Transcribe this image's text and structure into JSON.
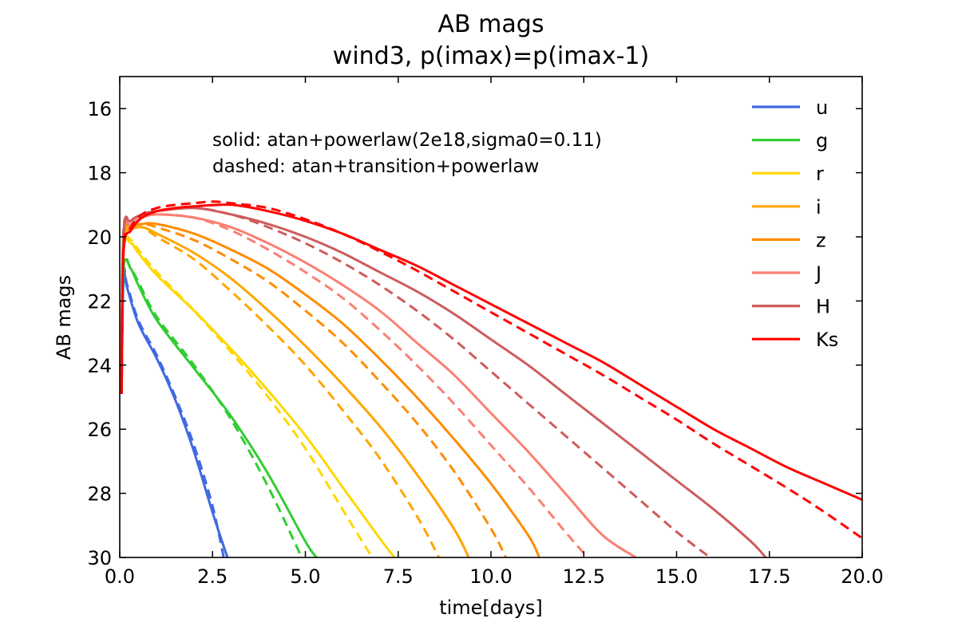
{
  "chart_data": {
    "type": "line",
    "title": "AB mags",
    "subtitle": "wind3, p(imax)=p(imax-1)",
    "xlabel": "time[days]",
    "ylabel": "AB mags",
    "xlim": [
      0,
      20
    ],
    "ylim": [
      30,
      15
    ],
    "y_inverted": true,
    "grid": false,
    "legend_position": "top-right",
    "x_ticks": [
      0,
      2.5,
      5,
      7.5,
      10,
      12.5,
      15,
      17.5,
      20
    ],
    "x_tick_labels": [
      "0.0",
      "2.5",
      "5.0",
      "7.5",
      "10.0",
      "12.5",
      "15.0",
      "17.5",
      "20.0"
    ],
    "y_ticks": [
      16,
      18,
      20,
      22,
      24,
      26,
      28,
      30
    ],
    "y_tick_labels": [
      "16",
      "18",
      "20",
      "22",
      "24",
      "26",
      "28",
      "30"
    ],
    "annotations": [
      "solid:  atan+powerlaw(2e18,sigma0=0.11)",
      "dashed:  atan+transition+powerlaw"
    ],
    "series": [
      {
        "name": "u",
        "color": "#4169e1",
        "solid": [
          [
            0.05,
            24.9
          ],
          [
            0.1,
            21.3
          ],
          [
            0.2,
            21.6
          ],
          [
            0.5,
            22.7
          ],
          [
            1,
            23.8
          ],
          [
            1.5,
            25.1
          ],
          [
            2,
            26.7
          ],
          [
            2.5,
            28.6
          ],
          [
            2.9,
            30.0
          ]
        ],
        "dashed": [
          [
            0.05,
            24.9
          ],
          [
            0.1,
            21.2
          ],
          [
            0.2,
            21.5
          ],
          [
            0.5,
            22.6
          ],
          [
            1,
            23.7
          ],
          [
            1.5,
            25.0
          ],
          [
            2,
            26.5
          ],
          [
            2.5,
            28.4
          ],
          [
            2.8,
            30.0
          ]
        ]
      },
      {
        "name": "g",
        "color": "#32cd32",
        "solid": [
          [
            0.05,
            24.8
          ],
          [
            0.1,
            21.0
          ],
          [
            0.3,
            21.0
          ],
          [
            0.5,
            21.5
          ],
          [
            1,
            22.6
          ],
          [
            2,
            24.1
          ],
          [
            3,
            25.6
          ],
          [
            4,
            27.4
          ],
          [
            5,
            29.5
          ],
          [
            5.3,
            30.0
          ]
        ],
        "dashed": [
          [
            0.05,
            24.8
          ],
          [
            0.1,
            20.9
          ],
          [
            0.3,
            21.0
          ],
          [
            0.5,
            21.4
          ],
          [
            1,
            22.5
          ],
          [
            2,
            24.0
          ],
          [
            3,
            25.7
          ],
          [
            4,
            27.8
          ],
          [
            4.9,
            30.0
          ]
        ]
      },
      {
        "name": "r",
        "color": "#ffd700",
        "solid": [
          [
            0.05,
            24.7
          ],
          [
            0.1,
            20.5
          ],
          [
            0.3,
            20.2
          ],
          [
            0.5,
            20.5
          ],
          [
            1,
            21.2
          ],
          [
            2,
            22.3
          ],
          [
            3,
            23.5
          ],
          [
            4,
            24.8
          ],
          [
            5,
            26.2
          ],
          [
            6,
            27.8
          ],
          [
            7,
            29.4
          ],
          [
            7.4,
            30.0
          ]
        ],
        "dashed": [
          [
            0.05,
            24.7
          ],
          [
            0.1,
            20.4
          ],
          [
            0.3,
            20.1
          ],
          [
            0.5,
            20.4
          ],
          [
            1,
            21.1
          ],
          [
            2,
            22.3
          ],
          [
            3,
            23.6
          ],
          [
            4,
            25.0
          ],
          [
            5,
            26.6
          ],
          [
            6,
            28.5
          ],
          [
            6.8,
            30.0
          ]
        ]
      },
      {
        "name": "i",
        "color": "#ffa500",
        "solid": [
          [
            0.05,
            24.6
          ],
          [
            0.1,
            20.3
          ],
          [
            0.3,
            19.8
          ],
          [
            0.6,
            19.7
          ],
          [
            1,
            19.9
          ],
          [
            2,
            20.5
          ],
          [
            3,
            21.3
          ],
          [
            4,
            22.3
          ],
          [
            5,
            23.4
          ],
          [
            6,
            24.6
          ],
          [
            7,
            25.9
          ],
          [
            8,
            27.4
          ],
          [
            9,
            29.1
          ],
          [
            9.4,
            30.0
          ]
        ],
        "dashed": [
          [
            0.05,
            24.6
          ],
          [
            0.1,
            20.2
          ],
          [
            0.3,
            19.8
          ],
          [
            0.6,
            19.7
          ],
          [
            1,
            20.0
          ],
          [
            2,
            20.7
          ],
          [
            3,
            21.7
          ],
          [
            4,
            22.8
          ],
          [
            5,
            24.0
          ],
          [
            6,
            25.4
          ],
          [
            7,
            26.9
          ],
          [
            8,
            28.7
          ],
          [
            8.6,
            30.0
          ]
        ]
      },
      {
        "name": "z",
        "color": "#ff8c00",
        "solid": [
          [
            0.05,
            24.5
          ],
          [
            0.1,
            20.1
          ],
          [
            0.3,
            19.7
          ],
          [
            0.6,
            19.6
          ],
          [
            1,
            19.6
          ],
          [
            2,
            19.9
          ],
          [
            3,
            20.4
          ],
          [
            4,
            21.0
          ],
          [
            5,
            21.8
          ],
          [
            6,
            22.7
          ],
          [
            7,
            23.8
          ],
          [
            8,
            25.0
          ],
          [
            9,
            26.3
          ],
          [
            10,
            27.7
          ],
          [
            11,
            29.3
          ],
          [
            11.3,
            30.0
          ]
        ],
        "dashed": [
          [
            0.05,
            24.5
          ],
          [
            0.1,
            20.0
          ],
          [
            0.3,
            19.7
          ],
          [
            0.6,
            19.6
          ],
          [
            1,
            19.7
          ],
          [
            2,
            20.1
          ],
          [
            3,
            20.7
          ],
          [
            4,
            21.4
          ],
          [
            5,
            22.3
          ],
          [
            6,
            23.3
          ],
          [
            7,
            24.5
          ],
          [
            8,
            25.8
          ],
          [
            9,
            27.3
          ],
          [
            10,
            29.1
          ],
          [
            10.4,
            30.0
          ]
        ]
      },
      {
        "name": "J",
        "color": "#fa8072",
        "solid": [
          [
            0.05,
            24.4
          ],
          [
            0.1,
            20.0
          ],
          [
            0.3,
            19.6
          ],
          [
            0.6,
            19.4
          ],
          [
            1,
            19.3
          ],
          [
            2,
            19.4
          ],
          [
            3,
            19.7
          ],
          [
            4,
            20.2
          ],
          [
            5,
            20.8
          ],
          [
            6,
            21.5
          ],
          [
            7,
            22.3
          ],
          [
            8,
            23.3
          ],
          [
            9,
            24.3
          ],
          [
            10,
            25.5
          ],
          [
            11,
            26.7
          ],
          [
            12,
            28.0
          ],
          [
            13,
            29.3
          ],
          [
            13.9,
            30.0
          ]
        ],
        "dashed": [
          [
            0.05,
            24.4
          ],
          [
            0.1,
            19.9
          ],
          [
            0.3,
            19.6
          ],
          [
            0.6,
            19.4
          ],
          [
            1,
            19.3
          ],
          [
            2,
            19.4
          ],
          [
            3,
            19.8
          ],
          [
            4,
            20.4
          ],
          [
            5,
            21.1
          ],
          [
            6,
            21.9
          ],
          [
            7,
            22.9
          ],
          [
            8,
            24.0
          ],
          [
            9,
            25.2
          ],
          [
            10,
            26.5
          ],
          [
            11,
            27.8
          ],
          [
            12,
            29.2
          ],
          [
            12.6,
            30.0
          ]
        ]
      },
      {
        "name": "H",
        "color": "#cd5c5c",
        "solid": [
          [
            0.05,
            24.3
          ],
          [
            0.1,
            19.9
          ],
          [
            0.3,
            19.5
          ],
          [
            0.6,
            19.3
          ],
          [
            1,
            19.2
          ],
          [
            2,
            19.1
          ],
          [
            3,
            19.3
          ],
          [
            4,
            19.6
          ],
          [
            5,
            20.0
          ],
          [
            6,
            20.5
          ],
          [
            7,
            21.1
          ],
          [
            8,
            21.7
          ],
          [
            9,
            22.4
          ],
          [
            10,
            23.2
          ],
          [
            11,
            24.0
          ],
          [
            12,
            24.9
          ],
          [
            13,
            25.8
          ],
          [
            14,
            26.7
          ],
          [
            15,
            27.6
          ],
          [
            16,
            28.5
          ],
          [
            17,
            29.5
          ],
          [
            17.4,
            30.0
          ]
        ],
        "dashed": [
          [
            0.05,
            24.3
          ],
          [
            0.1,
            19.8
          ],
          [
            0.3,
            19.5
          ],
          [
            0.6,
            19.3
          ],
          [
            1,
            19.2
          ],
          [
            2,
            19.1
          ],
          [
            3,
            19.3
          ],
          [
            4,
            19.7
          ],
          [
            5,
            20.2
          ],
          [
            6,
            20.8
          ],
          [
            7,
            21.5
          ],
          [
            8,
            22.3
          ],
          [
            9,
            23.2
          ],
          [
            10,
            24.2
          ],
          [
            11,
            25.2
          ],
          [
            12,
            26.2
          ],
          [
            13,
            27.2
          ],
          [
            14,
            28.2
          ],
          [
            15,
            29.2
          ],
          [
            15.9,
            30.0
          ]
        ]
      },
      {
        "name": "Ks",
        "color": "#ff0000",
        "solid": [
          [
            0.05,
            24.9
          ],
          [
            0.1,
            20.5
          ],
          [
            0.3,
            19.8
          ],
          [
            0.6,
            19.4
          ],
          [
            1,
            19.2
          ],
          [
            1.5,
            19.1
          ],
          [
            2,
            19.05
          ],
          [
            3,
            19.0
          ],
          [
            4,
            19.2
          ],
          [
            5,
            19.5
          ],
          [
            6,
            19.9
          ],
          [
            7,
            20.4
          ],
          [
            8,
            20.9
          ],
          [
            9,
            21.5
          ],
          [
            10,
            22.1
          ],
          [
            11,
            22.7
          ],
          [
            12,
            23.3
          ],
          [
            13,
            23.9
          ],
          [
            14,
            24.6
          ],
          [
            15,
            25.3
          ],
          [
            16,
            26.0
          ],
          [
            17,
            26.6
          ],
          [
            18,
            27.2
          ],
          [
            19,
            27.7
          ],
          [
            20,
            28.2
          ]
        ],
        "dashed": [
          [
            0.05,
            24.9
          ],
          [
            0.1,
            20.4
          ],
          [
            0.3,
            19.7
          ],
          [
            0.6,
            19.3
          ],
          [
            1,
            19.1
          ],
          [
            1.5,
            19.0
          ],
          [
            2,
            18.95
          ],
          [
            2.5,
            18.9
          ],
          [
            3,
            18.95
          ],
          [
            4,
            19.1
          ],
          [
            5,
            19.45
          ],
          [
            6,
            19.9
          ],
          [
            7,
            20.45
          ],
          [
            8,
            21.05
          ],
          [
            9,
            21.7
          ],
          [
            10,
            22.35
          ],
          [
            11,
            23.0
          ],
          [
            12,
            23.65
          ],
          [
            13,
            24.3
          ],
          [
            14,
            25.0
          ],
          [
            15,
            25.7
          ],
          [
            16,
            26.45
          ],
          [
            17,
            27.15
          ],
          [
            18,
            27.85
          ],
          [
            19,
            28.6
          ],
          [
            20,
            29.4
          ]
        ]
      }
    ]
  }
}
